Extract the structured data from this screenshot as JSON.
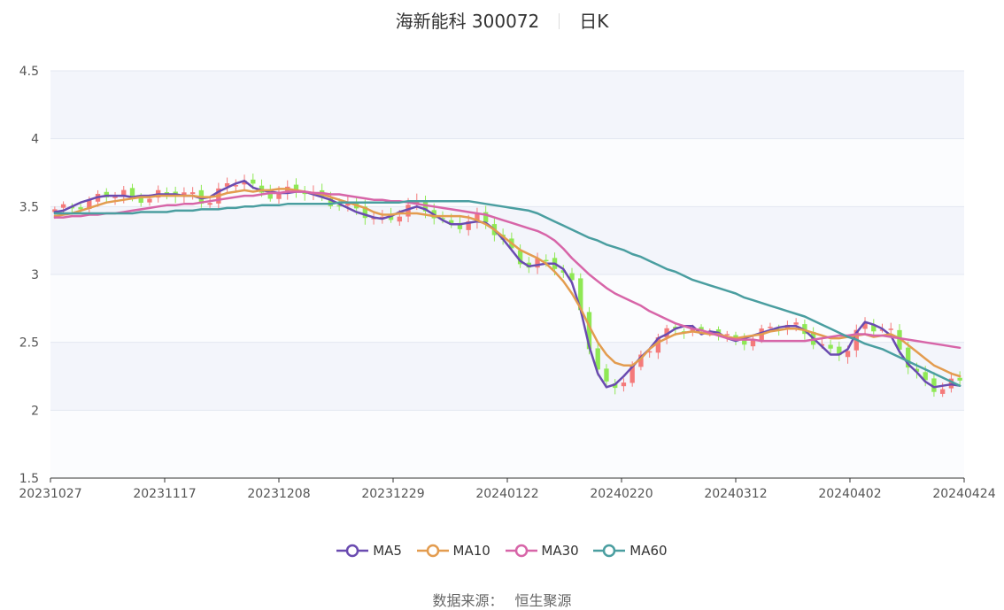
{
  "header": {
    "title": "海新能科 300072",
    "period": "日K"
  },
  "source_label": "数据来源：",
  "source_name": "恒生聚源",
  "colors": {
    "up": "#f47a7a",
    "down": "#8fe855",
    "band": "#f3f5fb",
    "ma5": "#6a4bb0",
    "ma10": "#e39c4f",
    "ma30": "#d765a8",
    "ma60": "#4a9ea0"
  },
  "chart_data": {
    "type": "candlestick",
    "title": "海新能科 300072",
    "ylim": [
      1.5,
      4.5
    ],
    "yticks": [
      "1.5",
      "2",
      "2.5",
      "3",
      "3.5",
      "4",
      "4.5"
    ],
    "xticks": [
      "20231027",
      "20231117",
      "20231208",
      "20231229",
      "20240122",
      "20240220",
      "20240312",
      "20240402",
      "20240424"
    ],
    "legend_position": "bottom",
    "series": [
      {
        "name": "MA5",
        "color": "#6a4bb0",
        "values": [
          3.46,
          3.47,
          3.5,
          3.53,
          3.55,
          3.57,
          3.58,
          3.58,
          3.58,
          3.57,
          3.58,
          3.58,
          3.59,
          3.59,
          3.59,
          3.58,
          3.58,
          3.56,
          3.57,
          3.61,
          3.64,
          3.67,
          3.69,
          3.64,
          3.62,
          3.61,
          3.6,
          3.6,
          3.61,
          3.61,
          3.59,
          3.57,
          3.55,
          3.52,
          3.49,
          3.46,
          3.44,
          3.42,
          3.41,
          3.43,
          3.46,
          3.48,
          3.5,
          3.48,
          3.44,
          3.4,
          3.37,
          3.37,
          3.38,
          3.39,
          3.38,
          3.33,
          3.26,
          3.18,
          3.1,
          3.06,
          3.07,
          3.08,
          3.08,
          3.04,
          2.94,
          2.74,
          2.47,
          2.27,
          2.17,
          2.19,
          2.25,
          2.32,
          2.39,
          2.45,
          2.53,
          2.56,
          2.6,
          2.62,
          2.62,
          2.56,
          2.58,
          2.57,
          2.53,
          2.51,
          2.53,
          2.55,
          2.57,
          2.59,
          2.61,
          2.62,
          2.62,
          2.59,
          2.53,
          2.47,
          2.41,
          2.41,
          2.45,
          2.57,
          2.65,
          2.63,
          2.6,
          2.55,
          2.43,
          2.34,
          2.28,
          2.21,
          2.17,
          2.18,
          2.19,
          2.18
        ]
      },
      {
        "name": "MA10",
        "color": "#e39c4f",
        "values": [
          3.43,
          3.44,
          3.45,
          3.47,
          3.49,
          3.51,
          3.53,
          3.54,
          3.55,
          3.56,
          3.57,
          3.57,
          3.58,
          3.58,
          3.58,
          3.58,
          3.58,
          3.57,
          3.57,
          3.58,
          3.6,
          3.61,
          3.62,
          3.61,
          3.62,
          3.62,
          3.63,
          3.63,
          3.62,
          3.61,
          3.6,
          3.59,
          3.57,
          3.55,
          3.53,
          3.51,
          3.49,
          3.46,
          3.44,
          3.44,
          3.45,
          3.45,
          3.45,
          3.44,
          3.43,
          3.43,
          3.43,
          3.43,
          3.42,
          3.4,
          3.37,
          3.33,
          3.28,
          3.23,
          3.18,
          3.15,
          3.12,
          3.08,
          3.02,
          2.95,
          2.86,
          2.75,
          2.62,
          2.5,
          2.41,
          2.35,
          2.33,
          2.33,
          2.38,
          2.45,
          2.5,
          2.53,
          2.56,
          2.57,
          2.58,
          2.57,
          2.56,
          2.56,
          2.54,
          2.53,
          2.54,
          2.55,
          2.56,
          2.58,
          2.59,
          2.6,
          2.6,
          2.59,
          2.57,
          2.55,
          2.53,
          2.53,
          2.54,
          2.55,
          2.56,
          2.54,
          2.55,
          2.56,
          2.53,
          2.48,
          2.43,
          2.38,
          2.33,
          2.3,
          2.27,
          2.25
        ]
      },
      {
        "name": "MA30",
        "color": "#d765a8",
        "values": [
          3.42,
          3.42,
          3.43,
          3.43,
          3.44,
          3.44,
          3.45,
          3.45,
          3.46,
          3.47,
          3.48,
          3.49,
          3.5,
          3.51,
          3.51,
          3.52,
          3.52,
          3.53,
          3.54,
          3.55,
          3.56,
          3.57,
          3.58,
          3.58,
          3.59,
          3.6,
          3.6,
          3.61,
          3.61,
          3.61,
          3.6,
          3.6,
          3.59,
          3.59,
          3.58,
          3.57,
          3.56,
          3.55,
          3.55,
          3.54,
          3.54,
          3.53,
          3.52,
          3.51,
          3.5,
          3.49,
          3.48,
          3.47,
          3.46,
          3.45,
          3.44,
          3.42,
          3.4,
          3.38,
          3.36,
          3.34,
          3.32,
          3.29,
          3.25,
          3.19,
          3.12,
          3.06,
          3.0,
          2.95,
          2.9,
          2.86,
          2.83,
          2.8,
          2.77,
          2.73,
          2.7,
          2.67,
          2.64,
          2.62,
          2.6,
          2.59,
          2.57,
          2.55,
          2.53,
          2.52,
          2.52,
          2.52,
          2.51,
          2.51,
          2.51,
          2.51,
          2.51,
          2.51,
          2.52,
          2.53,
          2.54,
          2.55,
          2.55,
          2.56,
          2.56,
          2.55,
          2.55,
          2.54,
          2.53,
          2.52,
          2.51,
          2.5,
          2.49,
          2.48,
          2.47,
          2.46
        ]
      },
      {
        "name": "MA60",
        "color": "#4a9ea0",
        "values": [
          3.45,
          3.45,
          3.45,
          3.45,
          3.45,
          3.45,
          3.45,
          3.45,
          3.45,
          3.45,
          3.46,
          3.46,
          3.46,
          3.46,
          3.47,
          3.47,
          3.47,
          3.48,
          3.48,
          3.48,
          3.49,
          3.49,
          3.5,
          3.5,
          3.51,
          3.51,
          3.51,
          3.52,
          3.52,
          3.52,
          3.52,
          3.52,
          3.52,
          3.53,
          3.53,
          3.53,
          3.53,
          3.53,
          3.53,
          3.53,
          3.53,
          3.54,
          3.54,
          3.54,
          3.54,
          3.54,
          3.54,
          3.54,
          3.54,
          3.53,
          3.52,
          3.51,
          3.5,
          3.49,
          3.48,
          3.47,
          3.45,
          3.42,
          3.39,
          3.36,
          3.33,
          3.3,
          3.27,
          3.25,
          3.22,
          3.2,
          3.18,
          3.15,
          3.13,
          3.1,
          3.07,
          3.04,
          3.02,
          2.99,
          2.96,
          2.94,
          2.92,
          2.9,
          2.88,
          2.86,
          2.83,
          2.81,
          2.79,
          2.77,
          2.75,
          2.73,
          2.71,
          2.69,
          2.66,
          2.63,
          2.6,
          2.57,
          2.54,
          2.52,
          2.49,
          2.47,
          2.45,
          2.42,
          2.39,
          2.36,
          2.33,
          2.3,
          2.27,
          2.24,
          2.21,
          2.18
        ]
      }
    ]
  }
}
